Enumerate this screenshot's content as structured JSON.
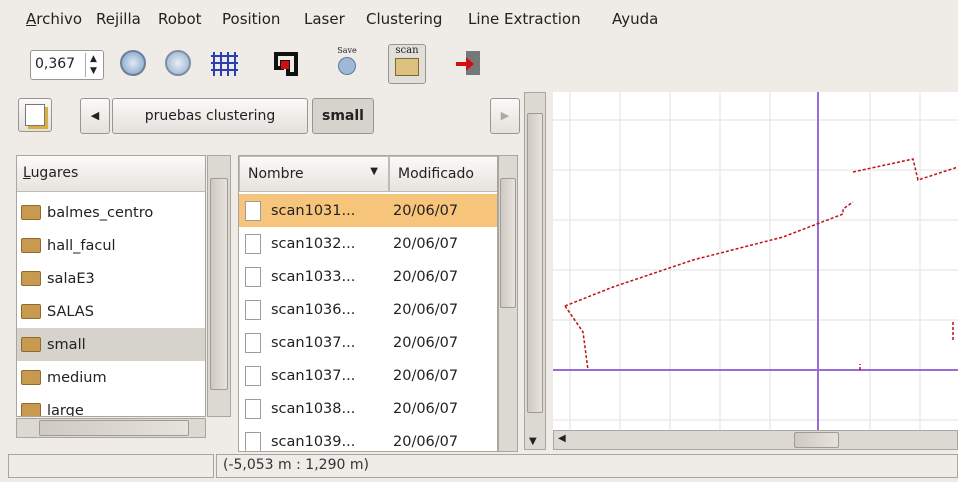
{
  "menu": [
    "Archivo",
    "Rejilla",
    "Robot",
    "Position",
    "Laser",
    "Clustering",
    "Line Extraction",
    "Ayuda"
  ],
  "toolbar": {
    "zoom": "0,367",
    "save_icon": "Save",
    "scan_icon": "scan"
  },
  "path_bar": [
    "pruebas clustering",
    "small"
  ],
  "places": {
    "header": "Lugares",
    "items": [
      "balmes_centro",
      "hall_facul",
      "salaE3",
      "SALAS",
      "small",
      "medium",
      "large"
    ]
  },
  "files": {
    "columns": [
      "Nombre",
      "Modificado"
    ],
    "rows": [
      [
        "scan1031...",
        "20/06/07"
      ],
      [
        "scan1032...",
        "20/06/07"
      ],
      [
        "scan1033...",
        "20/06/07"
      ],
      [
        "scan1036...",
        "20/06/07"
      ],
      [
        "scan1037...",
        "20/06/07"
      ],
      [
        "scan1037...",
        "20/06/07"
      ],
      [
        "scan1038...",
        "20/06/07"
      ],
      [
        "scan1039...",
        "20/06/07"
      ]
    ]
  },
  "status": "(-5,053 m : 1,290 m)"
}
